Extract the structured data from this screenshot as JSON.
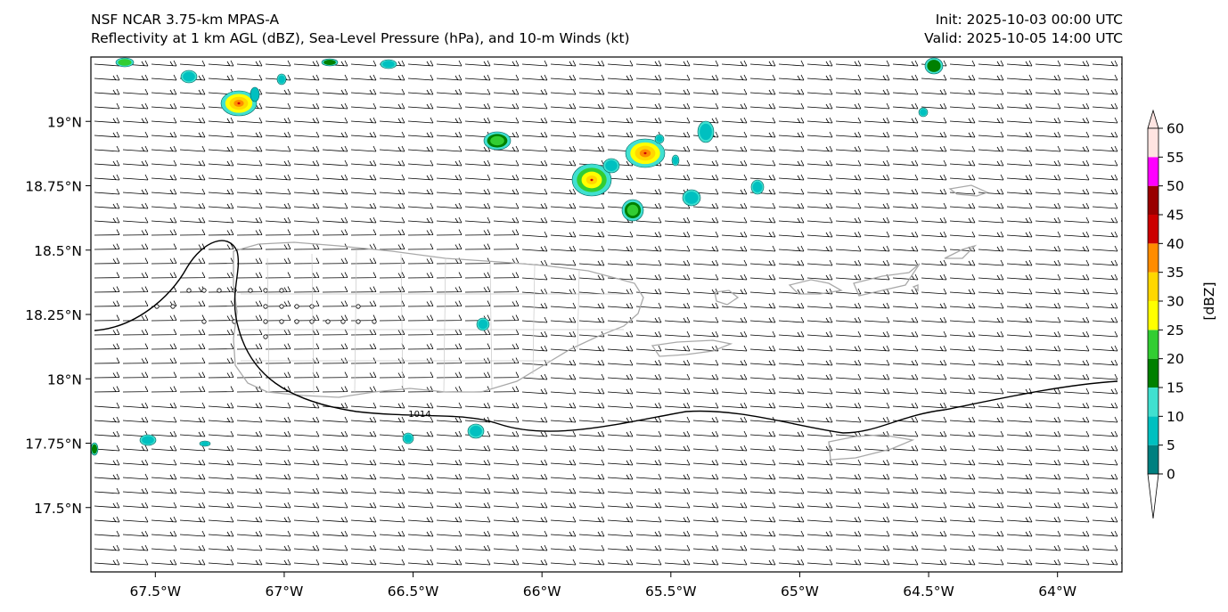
{
  "header": {
    "left_line1": "NSF NCAR 3.75-km MPAS-A",
    "left_line2": "Reflectivity at 1 km AGL (dBZ), Sea-Level Pressure (hPa), and 10-m Winds (kt)",
    "right_line1": "Init: 2025-10-03 00:00 UTC",
    "right_line2": "Valid: 2025-10-05 14:00 UTC"
  },
  "map": {
    "lon_range": [
      -67.75,
      -63.75
    ],
    "lat_range": [
      17.25,
      19.25
    ],
    "lon_ticks": [
      {
        "value": -67.5,
        "label": "67.5°W"
      },
      {
        "value": -67.0,
        "label": "67°W"
      },
      {
        "value": -66.5,
        "label": "66.5°W"
      },
      {
        "value": -66.0,
        "label": "66°W"
      },
      {
        "value": -65.5,
        "label": "65.5°W"
      },
      {
        "value": -65.0,
        "label": "65°W"
      },
      {
        "value": -64.5,
        "label": "64.5°W"
      },
      {
        "value": -64.0,
        "label": "64°W"
      }
    ],
    "lat_ticks": [
      {
        "value": 19.0,
        "label": "19°N"
      },
      {
        "value": 18.75,
        "label": "18.75°N"
      },
      {
        "value": 18.5,
        "label": "18.5°N"
      },
      {
        "value": 18.25,
        "label": "18.25°N"
      },
      {
        "value": 18.0,
        "label": "18°N"
      },
      {
        "value": 17.75,
        "label": "17.75°N"
      },
      {
        "value": 17.5,
        "label": "17.5°N"
      }
    ],
    "isobar_label": "1014",
    "isobar_color": "#000000",
    "coast_color": "#a9a9a9",
    "ocean_color": "#ffffff"
  },
  "colorbar": {
    "unit_label": "[dBZ]",
    "levels": [
      0,
      5,
      10,
      15,
      20,
      25,
      30,
      35,
      40,
      45,
      50,
      55,
      60
    ],
    "tick_labels": [
      "0",
      "5",
      "10",
      "15",
      "20",
      "25",
      "30",
      "35",
      "40",
      "45",
      "50",
      "55",
      "60"
    ],
    "colors": [
      "#008080",
      "#00c0c0",
      "#40e0d0",
      "#008000",
      "#32cd32",
      "#ffff00",
      "#ffd700",
      "#ff8c00",
      "#cc0000",
      "#990000",
      "#ff00ff",
      "#ffe4e1"
    ],
    "under_color": "#ffffff",
    "over_color": "#ffe4e1"
  }
}
